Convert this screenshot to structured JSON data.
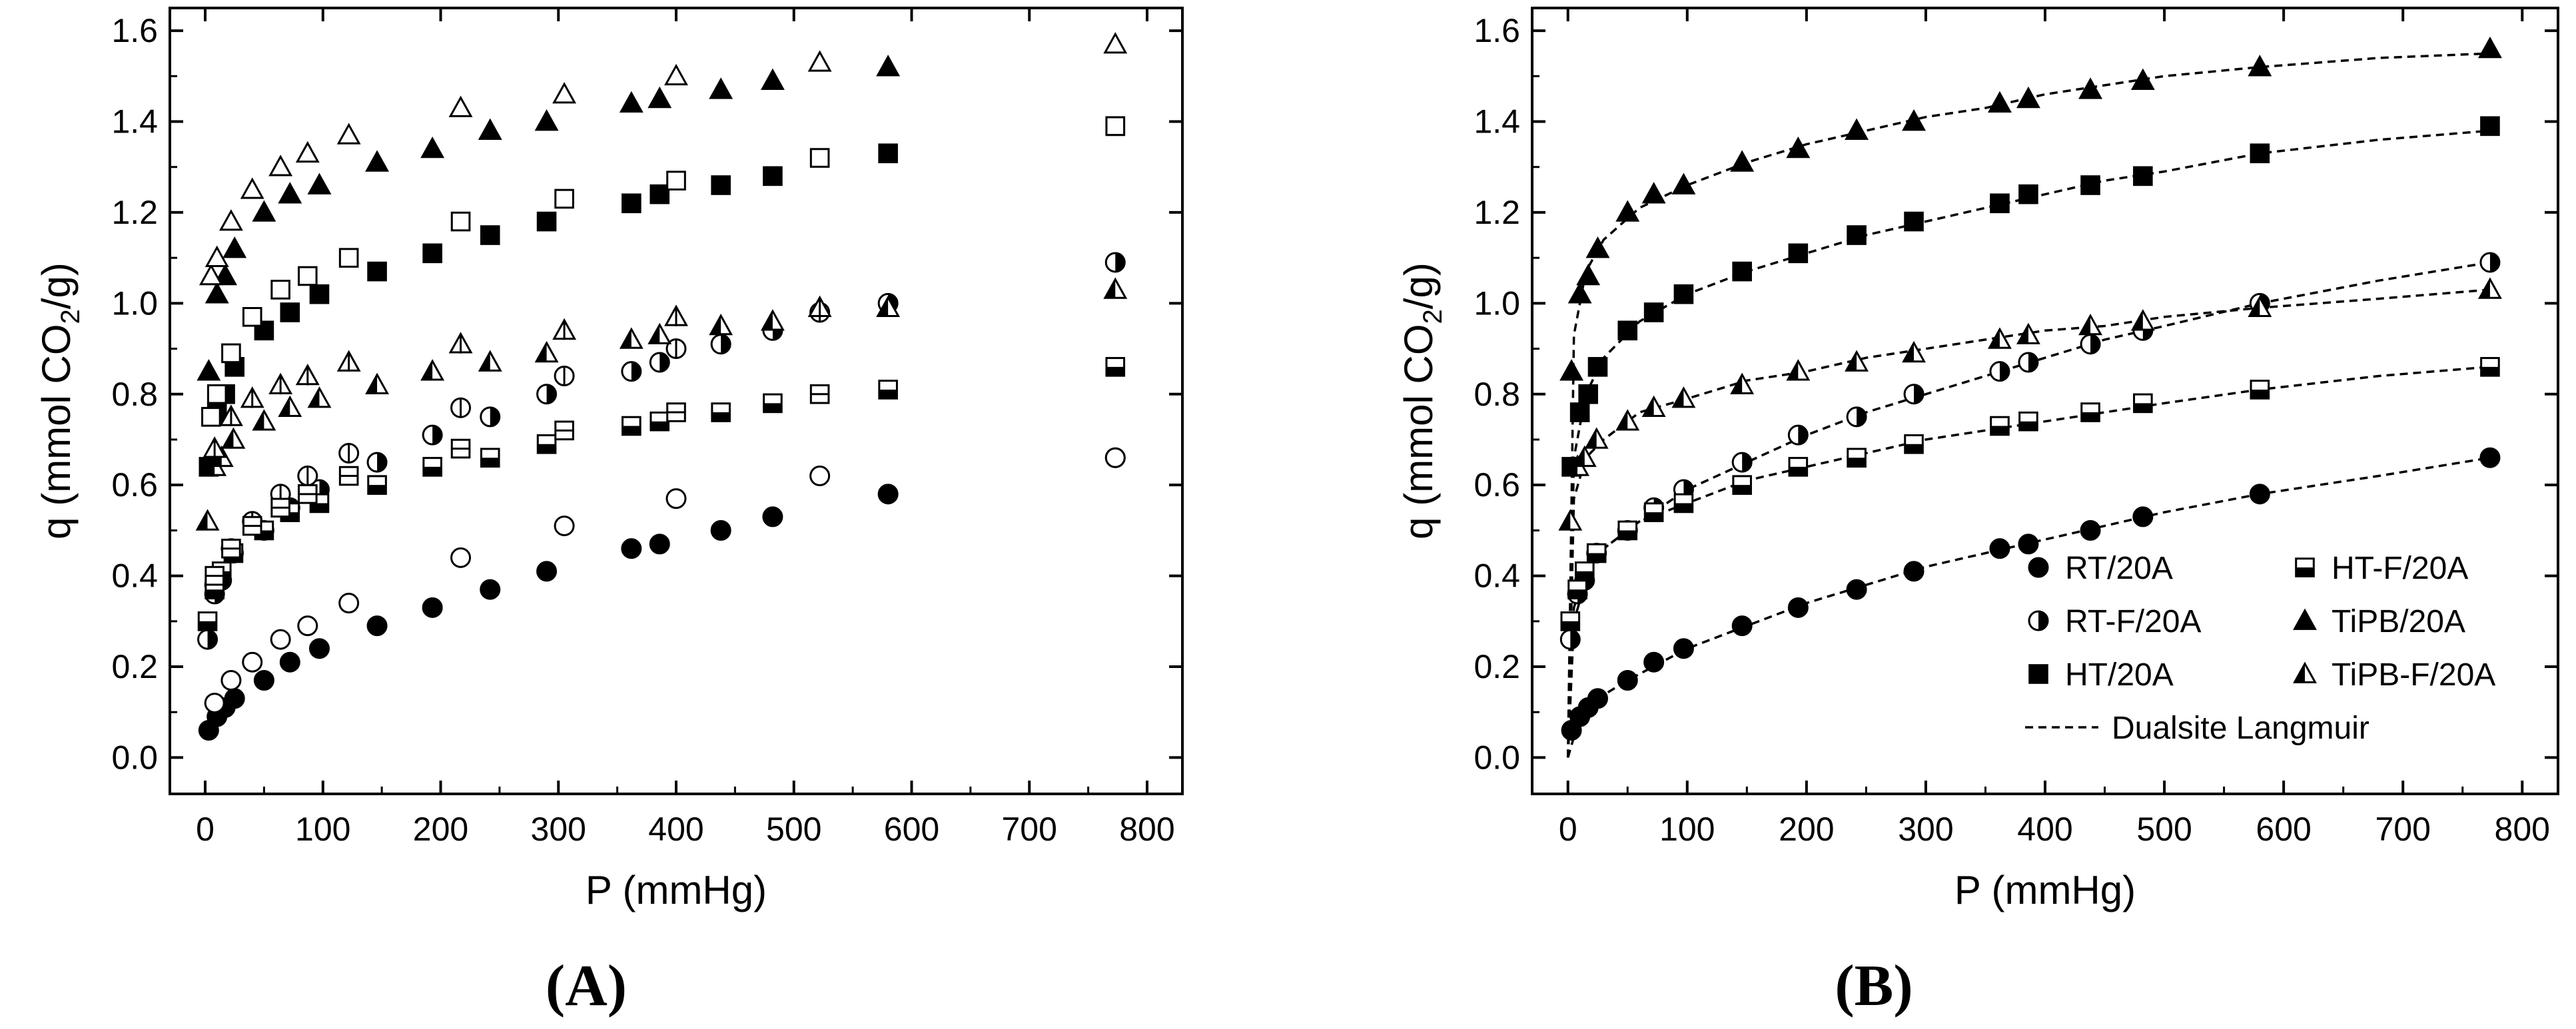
{
  "figure": {
    "panel_a_label": "(A)",
    "panel_b_label": "(B)"
  },
  "chart_data": [
    {
      "type": "scatter",
      "panel": "(A)",
      "xlabel": "P (mmHg)",
      "ylabel_main": "q (mmol CO",
      "ylabel_sub": "2",
      "ylabel_tail": "/g)",
      "xlim": [
        -30,
        830
      ],
      "ylim": [
        -0.08,
        1.65
      ],
      "xticks": [
        0,
        100,
        200,
        300,
        400,
        500,
        600,
        700,
        800
      ],
      "yticks": [
        0.0,
        0.2,
        0.4,
        0.6,
        0.8,
        1.0,
        1.2,
        1.4,
        1.6
      ],
      "series": [
        {
          "marker": "circle-filled",
          "x": [
            3,
            10,
            17,
            25,
            50,
            72,
            97,
            146,
            193,
            242,
            290,
            362,
            386,
            438,
            482,
            580,
            773
          ],
          "y": [
            0.06,
            0.09,
            0.11,
            0.13,
            0.17,
            0.21,
            0.24,
            0.29,
            0.33,
            0.37,
            0.41,
            0.46,
            0.47,
            0.5,
            0.53,
            0.58,
            0.66
          ]
        },
        {
          "marker": "circle-open",
          "x": [
            8,
            22,
            40,
            64,
            87,
            122,
            217,
            305,
            400,
            522,
            773
          ],
          "y": [
            0.12,
            0.17,
            0.21,
            0.26,
            0.29,
            0.34,
            0.44,
            0.51,
            0.57,
            0.62,
            0.66
          ]
        },
        {
          "marker": "circle-half",
          "x": [
            2,
            8,
            14,
            24,
            50,
            72,
            97,
            146,
            193,
            242,
            290,
            362,
            386,
            438,
            482,
            580,
            773
          ],
          "y": [
            0.26,
            0.36,
            0.39,
            0.45,
            0.5,
            0.55,
            0.59,
            0.65,
            0.71,
            0.75,
            0.8,
            0.85,
            0.87,
            0.91,
            0.94,
            1.0,
            1.09
          ]
        },
        {
          "marker": "circle-half-open",
          "x": [
            8,
            22,
            40,
            64,
            87,
            122,
            217,
            305,
            400,
            522
          ],
          "y": [
            0.38,
            0.46,
            0.52,
            0.58,
            0.62,
            0.67,
            0.77,
            0.84,
            0.9,
            0.98
          ]
        },
        {
          "marker": "square-filled",
          "x": [
            3,
            10,
            17,
            25,
            50,
            72,
            97,
            146,
            193,
            242,
            290,
            362,
            386,
            438,
            482,
            580,
            773
          ],
          "y": [
            0.64,
            0.76,
            0.8,
            0.86,
            0.94,
            0.98,
            1.02,
            1.07,
            1.11,
            1.15,
            1.18,
            1.22,
            1.24,
            1.26,
            1.28,
            1.33,
            1.39
          ]
        },
        {
          "marker": "square-open",
          "x": [
            5,
            10,
            22,
            40,
            64,
            87,
            122,
            217,
            305,
            400,
            522,
            773
          ],
          "y": [
            0.75,
            0.8,
            0.89,
            0.97,
            1.03,
            1.06,
            1.1,
            1.18,
            1.23,
            1.27,
            1.32,
            1.39
          ]
        },
        {
          "marker": "square-half",
          "x": [
            2,
            8,
            14,
            24,
            50,
            72,
            97,
            146,
            193,
            242,
            290,
            362,
            386,
            438,
            482,
            580,
            773
          ],
          "y": [
            0.3,
            0.37,
            0.41,
            0.45,
            0.5,
            0.54,
            0.56,
            0.6,
            0.64,
            0.66,
            0.69,
            0.73,
            0.74,
            0.76,
            0.78,
            0.81,
            0.86
          ]
        },
        {
          "marker": "square-half-open",
          "x": [
            8,
            22,
            40,
            64,
            87,
            122,
            217,
            305,
            400,
            522
          ],
          "y": [
            0.4,
            0.46,
            0.51,
            0.55,
            0.58,
            0.62,
            0.68,
            0.72,
            0.76,
            0.8
          ]
        },
        {
          "marker": "triangle-filled",
          "x": [
            3,
            10,
            17,
            25,
            50,
            72,
            97,
            146,
            193,
            242,
            290,
            362,
            386,
            438,
            482,
            580
          ],
          "y": [
            0.85,
            1.02,
            1.06,
            1.12,
            1.2,
            1.24,
            1.26,
            1.31,
            1.34,
            1.38,
            1.4,
            1.44,
            1.45,
            1.47,
            1.49,
            1.52
          ]
        },
        {
          "marker": "triangle-open",
          "x": [
            5,
            10,
            22,
            40,
            64,
            87,
            122,
            217,
            305,
            400,
            522,
            773
          ],
          "y": [
            1.06,
            1.1,
            1.18,
            1.25,
            1.3,
            1.33,
            1.37,
            1.43,
            1.46,
            1.5,
            1.53,
            1.57
          ]
        },
        {
          "marker": "triangle-half",
          "x": [
            2,
            8,
            14,
            24,
            50,
            72,
            97,
            146,
            193,
            242,
            290,
            362,
            386,
            438,
            482,
            580,
            773
          ],
          "y": [
            0.52,
            0.64,
            0.66,
            0.7,
            0.74,
            0.77,
            0.79,
            0.82,
            0.85,
            0.87,
            0.89,
            0.92,
            0.93,
            0.95,
            0.96,
            0.99,
            1.03
          ]
        },
        {
          "marker": "triangle-half-open",
          "x": [
            8,
            22,
            40,
            64,
            87,
            122,
            217,
            305,
            400,
            522
          ],
          "y": [
            0.68,
            0.75,
            0.79,
            0.82,
            0.84,
            0.87,
            0.91,
            0.94,
            0.97,
            0.99
          ]
        }
      ]
    },
    {
      "type": "scatter",
      "panel": "(B)",
      "xlabel": "P (mmHg)",
      "ylabel_main": "q (mmol CO",
      "ylabel_sub": "2",
      "ylabel_tail": "/g)",
      "xlim": [
        -30,
        830
      ],
      "ylim": [
        -0.08,
        1.65
      ],
      "xticks": [
        0,
        100,
        200,
        300,
        400,
        500,
        600,
        700,
        800
      ],
      "yticks": [
        0.0,
        0.2,
        0.4,
        0.6,
        0.8,
        1.0,
        1.2,
        1.4,
        1.6
      ],
      "legend": {
        "position": "bottom-right",
        "entries": [
          {
            "label": "RT/20A",
            "marker": "circle-filled"
          },
          {
            "label": "HT-F/20A",
            "marker": "square-half"
          },
          {
            "label": "RT-F/20A",
            "marker": "circle-half"
          },
          {
            "label": "TiPB/20A",
            "marker": "triangle-filled"
          },
          {
            "label": "HT/20A",
            "marker": "square-filled"
          },
          {
            "label": "TiPB-F/20A",
            "marker": "triangle-half"
          }
        ],
        "fit_label": "Dualsite Langmuir"
      },
      "series": [
        {
          "name": "RT/20A",
          "marker": "circle-filled",
          "x": [
            3,
            10,
            17,
            25,
            50,
            72,
            97,
            146,
            193,
            242,
            290,
            362,
            386,
            438,
            482,
            580,
            773
          ],
          "y": [
            0.06,
            0.09,
            0.11,
            0.13,
            0.17,
            0.21,
            0.24,
            0.29,
            0.33,
            0.37,
            0.41,
            0.46,
            0.47,
            0.5,
            0.53,
            0.58,
            0.66
          ]
        },
        {
          "name": "RT-F/20A",
          "marker": "circle-half",
          "x": [
            2,
            8,
            14,
            24,
            50,
            72,
            97,
            146,
            193,
            242,
            290,
            362,
            386,
            438,
            482,
            580,
            773
          ],
          "y": [
            0.26,
            0.36,
            0.39,
            0.45,
            0.5,
            0.55,
            0.59,
            0.65,
            0.71,
            0.75,
            0.8,
            0.85,
            0.87,
            0.91,
            0.94,
            1.0,
            1.09
          ]
        },
        {
          "name": "HT/20A",
          "marker": "square-filled",
          "x": [
            3,
            10,
            17,
            25,
            50,
            72,
            97,
            146,
            193,
            242,
            290,
            362,
            386,
            438,
            482,
            580,
            773
          ],
          "y": [
            0.64,
            0.76,
            0.8,
            0.86,
            0.94,
            0.98,
            1.02,
            1.07,
            1.11,
            1.15,
            1.18,
            1.22,
            1.24,
            1.26,
            1.28,
            1.33,
            1.39
          ]
        },
        {
          "name": "HT-F/20A",
          "marker": "square-half",
          "x": [
            2,
            8,
            14,
            24,
            50,
            72,
            97,
            146,
            193,
            242,
            290,
            362,
            386,
            438,
            482,
            580,
            773
          ],
          "y": [
            0.3,
            0.37,
            0.41,
            0.45,
            0.5,
            0.54,
            0.56,
            0.6,
            0.64,
            0.66,
            0.69,
            0.73,
            0.74,
            0.76,
            0.78,
            0.81,
            0.86
          ]
        },
        {
          "name": "TiPB/20A",
          "marker": "triangle-filled",
          "x": [
            3,
            10,
            17,
            25,
            50,
            72,
            97,
            146,
            193,
            242,
            290,
            362,
            386,
            438,
            482,
            580,
            773
          ],
          "y": [
            0.85,
            1.02,
            1.06,
            1.12,
            1.2,
            1.24,
            1.26,
            1.31,
            1.34,
            1.38,
            1.4,
            1.44,
            1.45,
            1.47,
            1.49,
            1.52,
            1.56
          ]
        },
        {
          "name": "TiPB-F/20A",
          "marker": "triangle-half",
          "x": [
            2,
            8,
            14,
            24,
            50,
            72,
            97,
            146,
            193,
            242,
            290,
            362,
            386,
            438,
            482,
            580,
            773
          ],
          "y": [
            0.52,
            0.64,
            0.66,
            0.7,
            0.74,
            0.77,
            0.79,
            0.82,
            0.85,
            0.87,
            0.89,
            0.92,
            0.93,
            0.95,
            0.96,
            0.99,
            1.03
          ]
        }
      ],
      "fits": [
        {
          "series": "RT/20A",
          "x": [
            0,
            10,
            25,
            50,
            100,
            150,
            200,
            250,
            300,
            350,
            400,
            450,
            500,
            580,
            680,
            773
          ],
          "y": [
            0.0,
            0.09,
            0.13,
            0.17,
            0.24,
            0.29,
            0.34,
            0.38,
            0.42,
            0.45,
            0.48,
            0.51,
            0.54,
            0.58,
            0.62,
            0.66
          ]
        },
        {
          "series": "RT-F/20A",
          "x": [
            0,
            5,
            15,
            30,
            60,
            100,
            150,
            200,
            250,
            300,
            350,
            400,
            450,
            500,
            580,
            680,
            773
          ],
          "y": [
            0.0,
            0.3,
            0.39,
            0.46,
            0.52,
            0.59,
            0.65,
            0.71,
            0.76,
            0.8,
            0.84,
            0.88,
            0.92,
            0.95,
            1.0,
            1.05,
            1.09
          ]
        },
        {
          "series": "HT/20A",
          "x": [
            0,
            5,
            15,
            30,
            60,
            100,
            150,
            200,
            250,
            300,
            350,
            400,
            450,
            500,
            580,
            680,
            773
          ],
          "y": [
            0.0,
            0.66,
            0.8,
            0.88,
            0.96,
            1.02,
            1.07,
            1.11,
            1.15,
            1.18,
            1.21,
            1.24,
            1.27,
            1.29,
            1.33,
            1.36,
            1.38
          ]
        },
        {
          "series": "HT-F/20A",
          "x": [
            0,
            5,
            15,
            30,
            60,
            100,
            150,
            200,
            250,
            300,
            350,
            400,
            450,
            500,
            580,
            680,
            773
          ],
          "y": [
            0.0,
            0.33,
            0.41,
            0.46,
            0.52,
            0.56,
            0.61,
            0.64,
            0.67,
            0.7,
            0.72,
            0.74,
            0.76,
            0.78,
            0.81,
            0.84,
            0.86
          ]
        },
        {
          "series": "TiPB/20A",
          "x": [
            0,
            5,
            15,
            30,
            60,
            100,
            150,
            200,
            250,
            300,
            350,
            400,
            450,
            500,
            580,
            680,
            773
          ],
          "y": [
            0.0,
            0.93,
            1.07,
            1.14,
            1.21,
            1.26,
            1.31,
            1.35,
            1.38,
            1.41,
            1.43,
            1.46,
            1.48,
            1.5,
            1.52,
            1.54,
            1.55
          ]
        },
        {
          "series": "TiPB-F/20A",
          "x": [
            0,
            5,
            15,
            30,
            60,
            100,
            150,
            200,
            250,
            300,
            350,
            400,
            450,
            500,
            580,
            680,
            773
          ],
          "y": [
            0.0,
            0.57,
            0.66,
            0.7,
            0.76,
            0.79,
            0.83,
            0.85,
            0.88,
            0.9,
            0.92,
            0.94,
            0.95,
            0.97,
            0.99,
            1.01,
            1.03
          ]
        }
      ]
    }
  ]
}
